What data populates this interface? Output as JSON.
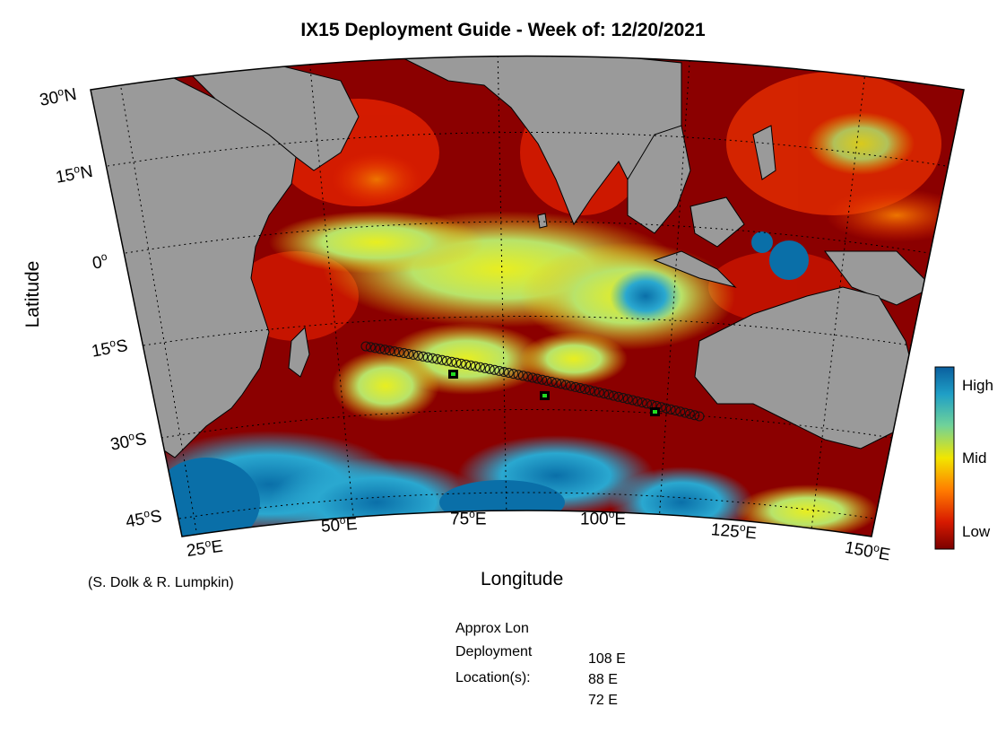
{
  "title": "IX15 Deployment Guide - Week of: 12/20/2021",
  "axes": {
    "xlabel": "Longitude",
    "ylabel": "Latitude"
  },
  "lat_ticks": [
    {
      "deg": "30",
      "hem": "N"
    },
    {
      "deg": "15",
      "hem": "N"
    },
    {
      "deg": "0",
      "hem": ""
    },
    {
      "deg": "15",
      "hem": "S"
    },
    {
      "deg": "30",
      "hem": "S"
    },
    {
      "deg": "45",
      "hem": "S"
    }
  ],
  "lon_ticks": [
    {
      "deg": "25",
      "hem": "E"
    },
    {
      "deg": "50",
      "hem": "E"
    },
    {
      "deg": "75",
      "hem": "E"
    },
    {
      "deg": "100",
      "hem": "E"
    },
    {
      "deg": "125",
      "hem": "E"
    },
    {
      "deg": "150",
      "hem": "E"
    }
  ],
  "colorbar": {
    "high": "High",
    "mid": "Mid",
    "low": "Low"
  },
  "credit": "(S. Dolk & R. Lumpkin)",
  "deployment": {
    "line1": "Approx Lon",
    "line2": "Deployment",
    "line3": "Location(s):",
    "locations": [
      "108 E",
      "88 E",
      "72 E"
    ]
  },
  "colors": {
    "land": "#9a9a9a",
    "low": "#8b0000",
    "mid": "#f2e600",
    "high": "#0a6fa8",
    "marker": "#22dd22"
  }
}
